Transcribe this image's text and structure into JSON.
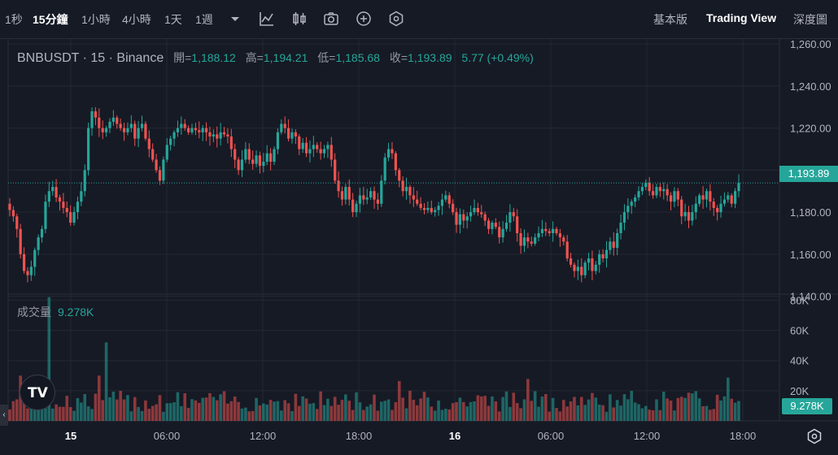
{
  "toolbar": {
    "intervals": [
      {
        "label": "1秒",
        "active": false
      },
      {
        "label": "15分鐘",
        "active": true
      },
      {
        "label": "1小時",
        "active": false
      },
      {
        "label": "4小時",
        "active": false
      },
      {
        "label": "1天",
        "active": false
      },
      {
        "label": "1週",
        "active": false
      }
    ],
    "icons": [
      "dropdown-caret-icon",
      "indicator-icon",
      "candle-type-icon",
      "camera-icon",
      "add-circle-icon",
      "settings-hex-icon"
    ],
    "views": [
      {
        "label": "基本版",
        "active": false
      },
      {
        "label": "Trading View",
        "active": true
      },
      {
        "label": "深度圖",
        "active": false
      }
    ]
  },
  "legend": {
    "symbol": "BNBUSDT · 15 · Binance",
    "open_label": "開=",
    "open": "1,188.12",
    "high_label": "高=",
    "high": "1,194.21",
    "low_label": "低=",
    "low": "1,185.68",
    "close_label": "收=",
    "close": "1,193.89",
    "change": "5.77 (+0.49%)"
  },
  "volume_legend": {
    "label": "成交量",
    "value": "9.278K"
  },
  "price_tag": "1,193.89",
  "volume_tag": "9.278K",
  "logo_text": "TV",
  "colors": {
    "up": "#26A69A",
    "down": "#EF5350",
    "background": "#161A25",
    "grid": "#242832"
  },
  "chart_data": {
    "type": "candlestick",
    "price_axis": {
      "ticks": [
        "1,260.00",
        "1,240.00",
        "1,220.00",
        "1,200.00",
        "1,180.00",
        "1,160.00",
        "1,140.00"
      ],
      "range": [
        1141,
        1262
      ]
    },
    "volume_axis": {
      "ticks": [
        "80K",
        "60K",
        "40K",
        "20K"
      ],
      "range": [
        0,
        84
      ]
    },
    "time_axis": {
      "ticks": [
        "15",
        "06:00",
        "12:00",
        "18:00",
        "16",
        "06:00",
        "12:00",
        "18:00"
      ]
    },
    "last_price": 1193.89,
    "closes": [
      1181,
      1178,
      1172,
      1160,
      1152,
      1150,
      1154,
      1162,
      1168,
      1172,
      1185,
      1190,
      1192,
      1187,
      1185,
      1182,
      1180,
      1175,
      1180,
      1185,
      1190,
      1200,
      1220,
      1228,
      1225,
      1220,
      1218,
      1220,
      1223,
      1225,
      1222,
      1220,
      1218,
      1220,
      1222,
      1215,
      1220,
      1222,
      1215,
      1210,
      1205,
      1200,
      1195,
      1205,
      1212,
      1215,
      1218,
      1220,
      1222,
      1220,
      1218,
      1220,
      1219,
      1218,
      1220,
      1218,
      1216,
      1217,
      1215,
      1218,
      1217,
      1216,
      1210,
      1205,
      1200,
      1205,
      1210,
      1205,
      1203,
      1207,
      1202,
      1204,
      1208,
      1204,
      1210,
      1218,
      1222,
      1220,
      1215,
      1218,
      1216,
      1210,
      1213,
      1208,
      1210,
      1212,
      1210,
      1208,
      1210,
      1212,
      1205,
      1195,
      1190,
      1186,
      1192,
      1186,
      1180,
      1184,
      1188,
      1186,
      1187,
      1190,
      1186,
      1184,
      1195,
      1206,
      1210,
      1208,
      1200,
      1195,
      1190,
      1192,
      1188,
      1186,
      1184,
      1182,
      1181,
      1182,
      1180,
      1181,
      1183,
      1186,
      1188,
      1184,
      1180,
      1174,
      1179,
      1176,
      1178,
      1180,
      1182,
      1180,
      1179,
      1176,
      1172,
      1175,
      1173,
      1168,
      1172,
      1175,
      1180,
      1178,
      1170,
      1164,
      1168,
      1166,
      1165,
      1168,
      1170,
      1172,
      1171,
      1170,
      1172,
      1170,
      1168,
      1166,
      1158,
      1155,
      1152,
      1154,
      1150,
      1156,
      1158,
      1152,
      1155,
      1160,
      1158,
      1162,
      1166,
      1163,
      1170,
      1175,
      1180,
      1183,
      1185,
      1187,
      1190,
      1192,
      1194,
      1190,
      1188,
      1192,
      1190,
      1191,
      1188,
      1185,
      1190,
      1186,
      1178,
      1180,
      1176,
      1180,
      1184,
      1188,
      1186,
      1190,
      1185,
      1182,
      1180,
      1184,
      1186,
      1188,
      1184,
      1190,
      1193.89
    ]
  }
}
